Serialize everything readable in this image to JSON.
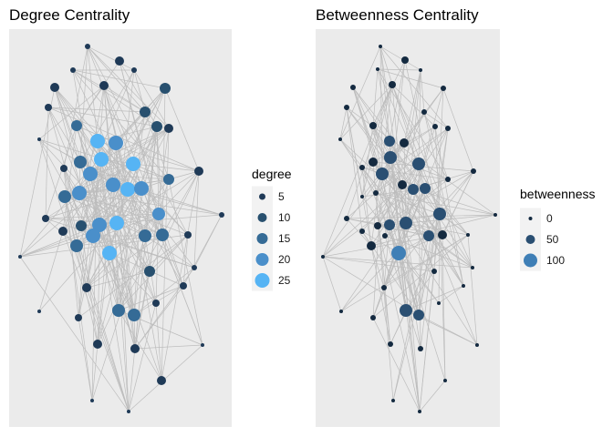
{
  "chart_data": [
    {
      "type": "network",
      "title": "Degree Centrality",
      "legend": {
        "title": "degree",
        "placement": "right",
        "entries": [
          {
            "label": "5",
            "value": 5,
            "color": "#1f3a57"
          },
          {
            "label": "10",
            "value": 10,
            "color": "#28506f"
          },
          {
            "label": "15",
            "value": 15,
            "color": "#356b96"
          },
          {
            "label": "20",
            "value": 20,
            "color": "#4a8fca"
          },
          {
            "label": "25",
            "value": 25,
            "color": "#56b4f4"
          }
        ]
      }
    },
    {
      "type": "network",
      "title": "Betweenness Centrality",
      "legend": {
        "title": "betweenness",
        "placement": "right",
        "entries": [
          {
            "label": "0",
            "value": 0,
            "color": "#142a40"
          },
          {
            "label": "50",
            "value": 50,
            "color": "#2a4f72"
          },
          {
            "label": "100",
            "value": 100,
            "color": "#3f7fb6"
          }
        ]
      }
    }
  ],
  "colors": {
    "panel_background": "#ebebeb",
    "edge": "#bdbdbd",
    "low": "#132b43",
    "high": "#56b1f7"
  }
}
